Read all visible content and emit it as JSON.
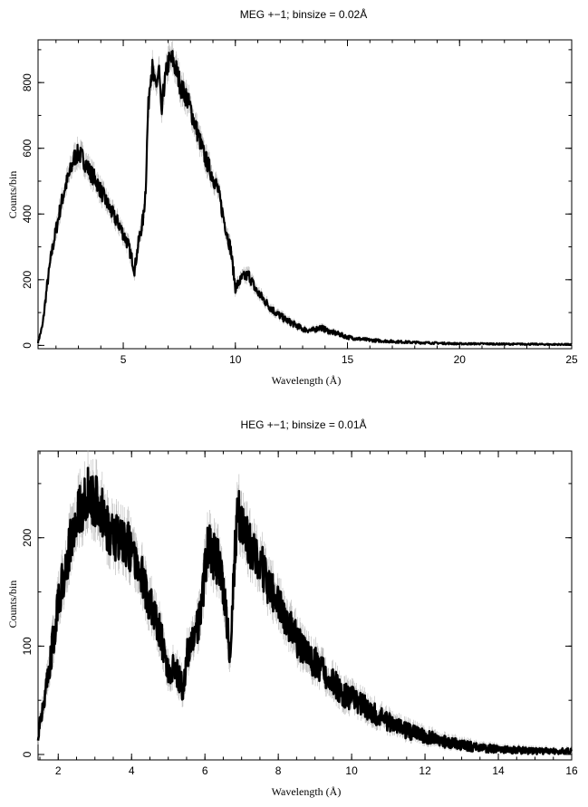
{
  "chart_data": [
    {
      "type": "line",
      "title": "MEG +−1; binsize = 0.02Å",
      "xlabel": "Wavelength (Å)",
      "ylabel": "Counts/bin",
      "xlim": [
        1.2,
        25
      ],
      "ylim": [
        -10,
        930
      ],
      "x_ticks": [
        5,
        10,
        15,
        20,
        25
      ],
      "y_ticks": [
        0,
        200,
        400,
        600,
        800
      ],
      "grid": false,
      "series": [
        {
          "x": [
            1.2,
            1.4,
            1.6,
            1.8,
            2.0,
            2.2,
            2.4,
            2.6,
            2.8,
            3.0,
            3.2,
            3.5,
            3.8,
            4.0,
            4.3,
            4.6,
            4.8,
            5.0,
            5.2,
            5.4,
            5.5,
            5.7,
            5.9,
            6.0,
            6.1,
            6.2,
            6.3,
            6.4,
            6.5,
            6.6,
            6.7,
            6.8,
            7.0,
            7.2,
            7.4,
            7.6,
            7.8,
            8.0,
            8.3,
            8.6,
            8.9,
            9.2,
            9.5,
            9.8,
            10.0,
            10.3,
            10.6,
            10.9,
            11.2,
            11.5,
            11.8,
            12.2,
            12.6,
            13.0,
            13.4,
            13.8,
            14.2,
            14.6,
            15.0,
            15.5,
            16.0,
            17.0,
            18.0,
            19.0,
            20.0,
            21.0,
            22.0,
            23.0,
            24.0,
            25.0
          ],
          "y": [
            10,
            60,
            180,
            280,
            350,
            420,
            480,
            520,
            570,
            585,
            570,
            530,
            500,
            470,
            430,
            390,
            370,
            340,
            310,
            260,
            230,
            320,
            390,
            480,
            700,
            820,
            840,
            790,
            800,
            840,
            690,
            780,
            860,
            870,
            830,
            780,
            760,
            720,
            650,
            580,
            530,
            480,
            380,
            290,
            175,
            205,
            215,
            170,
            145,
            120,
            100,
            80,
            65,
            50,
            45,
            55,
            42,
            35,
            25,
            20,
            16,
            12,
            9,
            7,
            5,
            5,
            4,
            4,
            3,
            3
          ]
        }
      ]
    },
    {
      "type": "line",
      "title": "HEG +−1; binsize = 0.01Å",
      "xlabel": "Wavelength (Å)",
      "ylabel": "Counts/bin",
      "xlim": [
        1.45,
        16
      ],
      "ylim": [
        -5,
        280
      ],
      "x_ticks": [
        2,
        4,
        6,
        8,
        10,
        12,
        14,
        16
      ],
      "y_ticks": [
        0,
        100,
        200
      ],
      "grid": false,
      "series": [
        {
          "x": [
            1.45,
            1.6,
            1.8,
            2.0,
            2.2,
            2.4,
            2.6,
            2.8,
            3.0,
            3.2,
            3.4,
            3.6,
            3.8,
            4.0,
            4.2,
            4.4,
            4.6,
            4.8,
            5.0,
            5.2,
            5.4,
            5.5,
            5.7,
            5.9,
            6.0,
            6.1,
            6.2,
            6.4,
            6.6,
            6.7,
            6.8,
            6.9,
            7.0,
            7.2,
            7.4,
            7.6,
            7.8,
            8.0,
            8.3,
            8.6,
            9.0,
            9.4,
            9.8,
            10.2,
            10.6,
            11.0,
            11.5,
            12.0,
            12.5,
            13.0,
            13.5,
            14.0,
            14.5,
            15.0,
            15.5,
            16.0
          ],
          "y": [
            20,
            50,
            90,
            140,
            175,
            205,
            225,
            240,
            235,
            225,
            205,
            200,
            195,
            190,
            175,
            150,
            130,
            110,
            75,
            80,
            60,
            90,
            110,
            130,
            175,
            195,
            185,
            175,
            120,
            85,
            175,
            225,
            210,
            195,
            185,
            170,
            150,
            140,
            120,
            100,
            85,
            70,
            55,
            48,
            38,
            30,
            22,
            17,
            12,
            9,
            6,
            5,
            4,
            3,
            3,
            3
          ]
        }
      ]
    }
  ]
}
